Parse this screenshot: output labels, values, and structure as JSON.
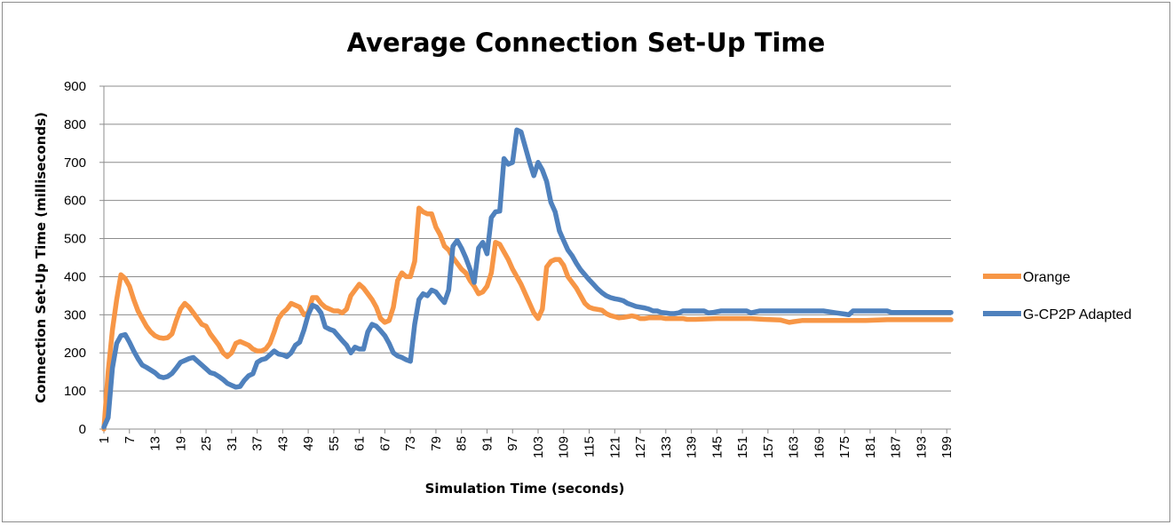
{
  "chart_data": {
    "type": "line",
    "title": "Average Connection Set-Up Time",
    "xlabel": "Simulation Time (seconds)",
    "ylabel": "Connection Set-Up Time (milliseconds)",
    "ylim": [
      0,
      900
    ],
    "yticks": [
      0,
      100,
      200,
      300,
      400,
      500,
      600,
      700,
      800,
      900
    ],
    "xlim": [
      1,
      200
    ],
    "xticks": [
      1,
      7,
      13,
      19,
      25,
      31,
      37,
      43,
      49,
      55,
      61,
      67,
      73,
      79,
      85,
      91,
      97,
      103,
      109,
      115,
      121,
      127,
      133,
      139,
      145,
      151,
      157,
      163,
      169,
      175,
      181,
      187,
      193,
      199
    ],
    "grid": "horizontal",
    "legend": "right",
    "colors": {
      "Orange": "#F79646",
      "G-CP2P Adapted": "#4F81BD"
    },
    "series": [
      {
        "name": "Orange",
        "points": [
          [
            1,
            0
          ],
          [
            2,
            150
          ],
          [
            3,
            260
          ],
          [
            4,
            340
          ],
          [
            5,
            405
          ],
          [
            6,
            395
          ],
          [
            7,
            375
          ],
          [
            8,
            340
          ],
          [
            9,
            310
          ],
          [
            10,
            290
          ],
          [
            11,
            270
          ],
          [
            12,
            255
          ],
          [
            13,
            245
          ],
          [
            14,
            240
          ],
          [
            15,
            238
          ],
          [
            16,
            240
          ],
          [
            17,
            250
          ],
          [
            18,
            285
          ],
          [
            19,
            315
          ],
          [
            20,
            330
          ],
          [
            21,
            320
          ],
          [
            22,
            305
          ],
          [
            23,
            290
          ],
          [
            24,
            275
          ],
          [
            25,
            270
          ],
          [
            26,
            250
          ],
          [
            27,
            235
          ],
          [
            28,
            220
          ],
          [
            29,
            200
          ],
          [
            30,
            190
          ],
          [
            31,
            200
          ],
          [
            32,
            225
          ],
          [
            33,
            230
          ],
          [
            34,
            225
          ],
          [
            35,
            220
          ],
          [
            36,
            210
          ],
          [
            37,
            205
          ],
          [
            38,
            205
          ],
          [
            39,
            210
          ],
          [
            40,
            225
          ],
          [
            41,
            255
          ],
          [
            42,
            290
          ],
          [
            43,
            305
          ],
          [
            44,
            315
          ],
          [
            45,
            330
          ],
          [
            46,
            325
          ],
          [
            47,
            320
          ],
          [
            48,
            300
          ],
          [
            49,
            305
          ],
          [
            50,
            345
          ],
          [
            51,
            345
          ],
          [
            52,
            330
          ],
          [
            53,
            320
          ],
          [
            54,
            315
          ],
          [
            55,
            310
          ],
          [
            56,
            310
          ],
          [
            57,
            305
          ],
          [
            58,
            315
          ],
          [
            59,
            350
          ],
          [
            60,
            365
          ],
          [
            61,
            380
          ],
          [
            62,
            370
          ],
          [
            63,
            355
          ],
          [
            64,
            340
          ],
          [
            65,
            320
          ],
          [
            66,
            290
          ],
          [
            67,
            280
          ],
          [
            68,
            285
          ],
          [
            69,
            320
          ],
          [
            70,
            390
          ],
          [
            71,
            410
          ],
          [
            72,
            400
          ],
          [
            73,
            400
          ],
          [
            74,
            440
          ],
          [
            75,
            580
          ],
          [
            76,
            570
          ],
          [
            77,
            565
          ],
          [
            78,
            565
          ],
          [
            79,
            530
          ],
          [
            80,
            510
          ],
          [
            81,
            480
          ],
          [
            82,
            470
          ],
          [
            83,
            450
          ],
          [
            84,
            435
          ],
          [
            85,
            420
          ],
          [
            86,
            410
          ],
          [
            87,
            390
          ],
          [
            88,
            375
          ],
          [
            89,
            355
          ],
          [
            90,
            360
          ],
          [
            91,
            375
          ],
          [
            92,
            410
          ],
          [
            93,
            490
          ],
          [
            94,
            485
          ],
          [
            95,
            465
          ],
          [
            96,
            445
          ],
          [
            97,
            420
          ],
          [
            98,
            400
          ],
          [
            99,
            380
          ],
          [
            100,
            355
          ],
          [
            101,
            330
          ],
          [
            102,
            305
          ],
          [
            103,
            290
          ],
          [
            104,
            315
          ],
          [
            105,
            425
          ],
          [
            106,
            440
          ],
          [
            107,
            445
          ],
          [
            108,
            445
          ],
          [
            109,
            430
          ],
          [
            110,
            400
          ],
          [
            111,
            385
          ],
          [
            112,
            370
          ],
          [
            113,
            350
          ],
          [
            114,
            330
          ],
          [
            115,
            320
          ],
          [
            116,
            316
          ],
          [
            117,
            314
          ],
          [
            118,
            312
          ],
          [
            119,
            303
          ],
          [
            120,
            298
          ],
          [
            121,
            295
          ],
          [
            122,
            292
          ],
          [
            123,
            293
          ],
          [
            124,
            295
          ],
          [
            125,
            297
          ],
          [
            126,
            295
          ],
          [
            127,
            290
          ],
          [
            128,
            290
          ],
          [
            129,
            292
          ],
          [
            130,
            292
          ],
          [
            131,
            292
          ],
          [
            132,
            292
          ],
          [
            133,
            290
          ],
          [
            134,
            290
          ],
          [
            135,
            290
          ],
          [
            136,
            290
          ],
          [
            137,
            290
          ],
          [
            138,
            288
          ],
          [
            139,
            288
          ],
          [
            140,
            288
          ],
          [
            145,
            290
          ],
          [
            150,
            290
          ],
          [
            153,
            290
          ],
          [
            156,
            288
          ],
          [
            160,
            286
          ],
          [
            161,
            283
          ],
          [
            162,
            280
          ],
          [
            163,
            282
          ],
          [
            165,
            285
          ],
          [
            170,
            285
          ],
          [
            175,
            285
          ],
          [
            180,
            285
          ],
          [
            185,
            287
          ],
          [
            190,
            287
          ],
          [
            195,
            287
          ],
          [
            200,
            287
          ]
        ]
      },
      {
        "name": "G-CP2P Adapted",
        "points": [
          [
            1,
            5
          ],
          [
            2,
            30
          ],
          [
            3,
            160
          ],
          [
            4,
            225
          ],
          [
            5,
            245
          ],
          [
            6,
            248
          ],
          [
            7,
            228
          ],
          [
            8,
            205
          ],
          [
            9,
            185
          ],
          [
            10,
            168
          ],
          [
            11,
            162
          ],
          [
            12,
            155
          ],
          [
            13,
            148
          ],
          [
            14,
            138
          ],
          [
            15,
            135
          ],
          [
            16,
            138
          ],
          [
            17,
            146
          ],
          [
            18,
            160
          ],
          [
            19,
            175
          ],
          [
            20,
            180
          ],
          [
            21,
            185
          ],
          [
            22,
            188
          ],
          [
            23,
            178
          ],
          [
            24,
            168
          ],
          [
            25,
            158
          ],
          [
            26,
            148
          ],
          [
            27,
            145
          ],
          [
            28,
            138
          ],
          [
            29,
            130
          ],
          [
            30,
            120
          ],
          [
            31,
            115
          ],
          [
            32,
            110
          ],
          [
            33,
            112
          ],
          [
            34,
            128
          ],
          [
            35,
            140
          ],
          [
            36,
            145
          ],
          [
            37,
            175
          ],
          [
            38,
            182
          ],
          [
            39,
            185
          ],
          [
            40,
            195
          ],
          [
            41,
            205
          ],
          [
            42,
            197
          ],
          [
            43,
            195
          ],
          [
            44,
            190
          ],
          [
            45,
            200
          ],
          [
            46,
            220
          ],
          [
            47,
            228
          ],
          [
            48,
            260
          ],
          [
            49,
            300
          ],
          [
            50,
            325
          ],
          [
            51,
            320
          ],
          [
            52,
            305
          ],
          [
            53,
            268
          ],
          [
            54,
            262
          ],
          [
            55,
            258
          ],
          [
            56,
            245
          ],
          [
            57,
            232
          ],
          [
            58,
            220
          ],
          [
            59,
            200
          ],
          [
            60,
            215
          ],
          [
            61,
            210
          ],
          [
            62,
            210
          ],
          [
            63,
            255
          ],
          [
            64,
            275
          ],
          [
            65,
            270
          ],
          [
            66,
            258
          ],
          [
            67,
            245
          ],
          [
            68,
            225
          ],
          [
            69,
            200
          ],
          [
            70,
            192
          ],
          [
            71,
            188
          ],
          [
            72,
            182
          ],
          [
            73,
            178
          ],
          [
            74,
            275
          ],
          [
            75,
            340
          ],
          [
            76,
            355
          ],
          [
            77,
            350
          ],
          [
            78,
            365
          ],
          [
            79,
            360
          ],
          [
            80,
            345
          ],
          [
            81,
            332
          ],
          [
            82,
            365
          ],
          [
            83,
            480
          ],
          [
            84,
            495
          ],
          [
            85,
            475
          ],
          [
            86,
            450
          ],
          [
            87,
            420
          ],
          [
            88,
            385
          ],
          [
            89,
            475
          ],
          [
            90,
            490
          ],
          [
            91,
            460
          ],
          [
            92,
            555
          ],
          [
            93,
            570
          ],
          [
            94,
            572
          ],
          [
            95,
            710
          ],
          [
            96,
            695
          ],
          [
            97,
            700
          ],
          [
            98,
            785
          ],
          [
            99,
            780
          ],
          [
            100,
            740
          ],
          [
            101,
            700
          ],
          [
            102,
            665
          ],
          [
            103,
            700
          ],
          [
            104,
            680
          ],
          [
            105,
            650
          ],
          [
            106,
            595
          ],
          [
            107,
            570
          ],
          [
            108,
            520
          ],
          [
            109,
            495
          ],
          [
            110,
            470
          ],
          [
            111,
            455
          ],
          [
            112,
            435
          ],
          [
            113,
            418
          ],
          [
            114,
            405
          ],
          [
            115,
            392
          ],
          [
            116,
            380
          ],
          [
            117,
            368
          ],
          [
            118,
            358
          ],
          [
            119,
            350
          ],
          [
            120,
            345
          ],
          [
            121,
            342
          ],
          [
            122,
            340
          ],
          [
            123,
            337
          ],
          [
            124,
            330
          ],
          [
            125,
            326
          ],
          [
            126,
            322
          ],
          [
            127,
            320
          ],
          [
            128,
            318
          ],
          [
            129,
            315
          ],
          [
            130,
            310
          ],
          [
            131,
            310
          ],
          [
            132,
            306
          ],
          [
            133,
            305
          ],
          [
            134,
            303
          ],
          [
            135,
            303
          ],
          [
            136,
            305
          ],
          [
            137,
            310
          ],
          [
            138,
            310
          ],
          [
            140,
            310
          ],
          [
            142,
            310
          ],
          [
            143,
            305
          ],
          [
            144,
            306
          ],
          [
            146,
            310
          ],
          [
            148,
            310
          ],
          [
            150,
            310
          ],
          [
            152,
            310
          ],
          [
            153,
            305
          ],
          [
            155,
            310
          ],
          [
            160,
            310
          ],
          [
            165,
            310
          ],
          [
            170,
            310
          ],
          [
            173,
            305
          ],
          [
            175,
            302
          ],
          [
            176,
            300
          ],
          [
            177,
            310
          ],
          [
            180,
            310
          ],
          [
            183,
            310
          ],
          [
            185,
            310
          ],
          [
            186,
            306
          ],
          [
            190,
            306
          ],
          [
            195,
            306
          ],
          [
            200,
            306
          ]
        ]
      }
    ]
  }
}
